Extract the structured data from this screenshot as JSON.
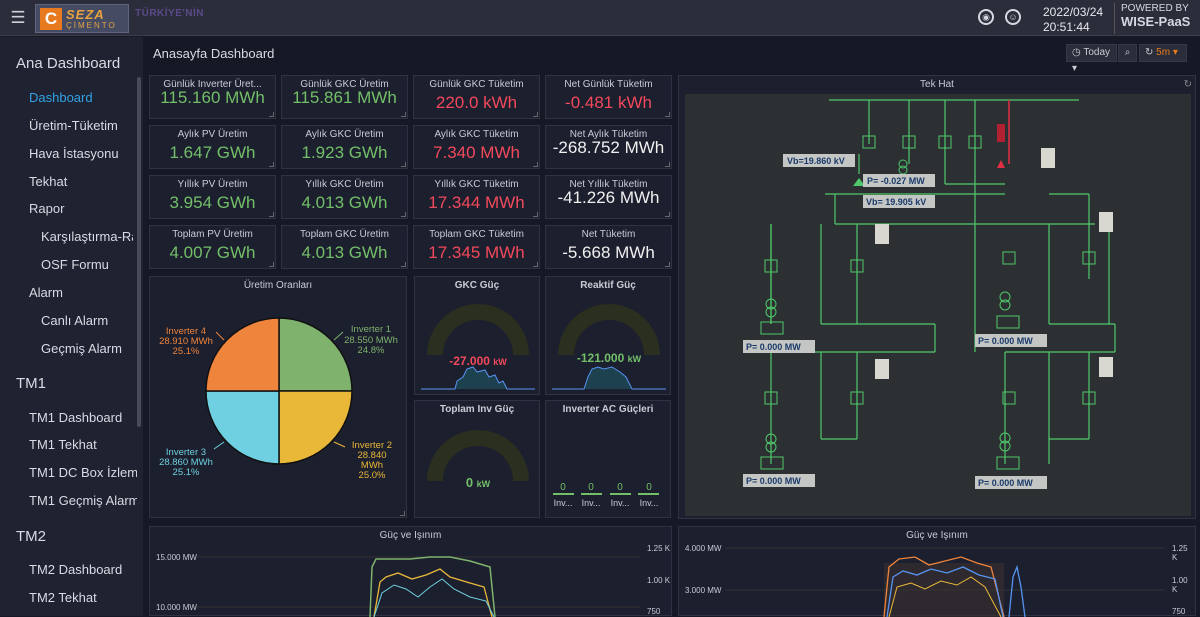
{
  "header": {
    "menu_icon": "hamburger-icon",
    "logo_mark": "C",
    "logo_text": "SEZA",
    "logo_sub": "ÇİMENTO",
    "slogan": "TÜRKİYE'NİN",
    "date": "2022/03/24",
    "time": "20:51:44",
    "powered_line1": "POWERED BY",
    "powered_line2": "WISE-PaaS"
  },
  "sidebar": {
    "items": [
      {
        "label": "Ana Dashboard"
      },
      {
        "label": "Dashboard"
      },
      {
        "label": "Üretim-Tüketim"
      },
      {
        "label": "Hava İstasyonu"
      },
      {
        "label": "Tekhat"
      },
      {
        "label": "Rapor"
      },
      {
        "label": "Karşılaştırma-Ra"
      },
      {
        "label": "OSF Formu"
      },
      {
        "label": "Alarm"
      },
      {
        "label": "Canlı Alarm"
      },
      {
        "label": "Geçmiş Alarm"
      },
      {
        "label": "TM1"
      },
      {
        "label": "TM1 Dashboard"
      },
      {
        "label": "TM1 Tekhat"
      },
      {
        "label": "TM1 DC Box İzlem"
      },
      {
        "label": "TM1 Geçmiş Alarm"
      },
      {
        "label": "TM2"
      },
      {
        "label": "TM2 Dashboard"
      },
      {
        "label": "TM2 Tekhat"
      }
    ]
  },
  "main": {
    "title": "Anasayfa Dashboard",
    "time_range": "Today",
    "refresh": "5m"
  },
  "stats": [
    {
      "title": "Günlük Inverter Üret...",
      "value": "115.160 MWh",
      "color": "green"
    },
    {
      "title": "Günlük GKC Üretim",
      "value": "115.861 MWh",
      "color": "green"
    },
    {
      "title": "Günlük GKC Tüketim",
      "value": "220.0 kWh",
      "color": "red"
    },
    {
      "title": "Net Günlük Tüketim",
      "value": "-0.481 kWh",
      "color": "red"
    },
    {
      "title": "Aylık PV Üretim",
      "value": "1.647 GWh",
      "color": "green"
    },
    {
      "title": "Aylık GKC Üretim",
      "value": "1.923 GWh",
      "color": "green"
    },
    {
      "title": "Aylık GKC Tüketim",
      "value": "7.340 MWh",
      "color": "red"
    },
    {
      "title": "Net Aylık Tüketim",
      "value": "-268.752 MWh",
      "color": "white"
    },
    {
      "title": "Yıllık PV Üretim",
      "value": "3.954 GWh",
      "color": "green"
    },
    {
      "title": "Yıllık GKC Üretim",
      "value": "4.013 GWh",
      "color": "green"
    },
    {
      "title": "Yıllık GKC Tüketim",
      "value": "17.344 MWh",
      "color": "red"
    },
    {
      "title": "Net Yıllık Tüketim",
      "value": "-41.226 MWh",
      "color": "white"
    },
    {
      "title": "Toplam PV Üretim",
      "value": "4.007 GWh",
      "color": "green"
    },
    {
      "title": "Toplam GKC Üretim",
      "value": "4.013 GWh",
      "color": "green"
    },
    {
      "title": "Toplam GKC Tüketim",
      "value": "17.345 MWh",
      "color": "red"
    },
    {
      "title": "Net Tüketim",
      "value": "-5.668 MWh",
      "color": "white"
    }
  ],
  "pie": {
    "title": "Üretim Oranları",
    "slices": [
      {
        "name": "Inverter 1",
        "value": "28.550 MWh",
        "pct": "24.8%",
        "color": "#7eb26d"
      },
      {
        "name": "Inverter 2",
        "value": "28.840",
        "value2": "MWh",
        "pct": "25.0%",
        "color": "#eab839"
      },
      {
        "name": "Inverter 3",
        "value": "28.860 MWh",
        "pct": "25.1%",
        "color": "#6ed0e0"
      },
      {
        "name": "Inverter 4",
        "value": "28.910 MWh",
        "pct": "25.1%",
        "color": "#ef843c"
      }
    ]
  },
  "gauges": {
    "gkc": {
      "title": "GKC Güç",
      "value": "-27.000",
      "unit": "kW"
    },
    "reaktif": {
      "title": "Reaktif Güç",
      "value": "-121.000",
      "unit": "kW"
    },
    "inv": {
      "title": "Toplam Inv Güç",
      "value": "0",
      "unit": "kW"
    },
    "ac": {
      "title": "Inverter AC Güçleri",
      "values": [
        "0",
        "0",
        "0",
        "0"
      ],
      "labels": [
        "Inv...",
        "Inv...",
        "Inv...",
        "Inv..."
      ]
    }
  },
  "tekhat": {
    "title": "Tek Hat",
    "vb1": "Vb=19.860 kV",
    "p_main": "P=  -0.027 MW",
    "vb2": "Vb= 19.905 kV",
    "p1": "P=   0.000 MW",
    "p2": "P=   0.000 MW",
    "p3": "P=   0.000 MW",
    "p4": "P=   0.000 MW"
  },
  "bottom": {
    "left": {
      "title": "Güç ve Işınım",
      "y_left": [
        "15.000 MW",
        "10.000 MW"
      ],
      "y_right": [
        "1.25 K",
        "1.00 K",
        "750"
      ]
    },
    "right": {
      "title": "Güç ve Işınım",
      "y_left": [
        "4.000 MW",
        "3.000 MW"
      ],
      "y_right": [
        "1.25 K",
        "1.00 K",
        "750"
      ]
    }
  },
  "colors": {
    "green": "#73bf69",
    "red": "#f2495c",
    "white": "#f0f0f0"
  }
}
